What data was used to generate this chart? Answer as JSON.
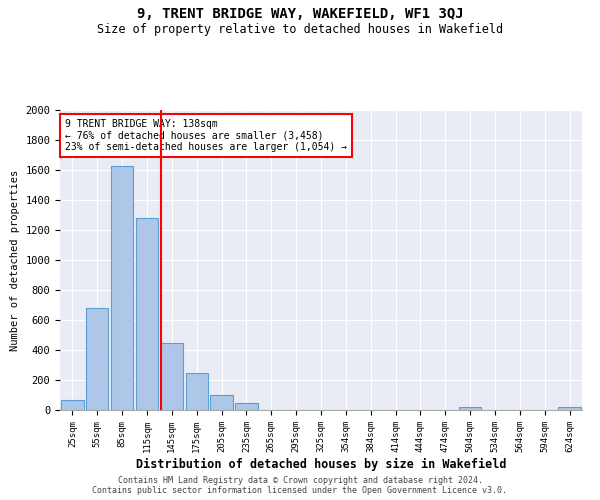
{
  "title": "9, TRENT BRIDGE WAY, WAKEFIELD, WF1 3QJ",
  "subtitle": "Size of property relative to detached houses in Wakefield",
  "xlabel": "Distribution of detached houses by size in Wakefield",
  "ylabel": "Number of detached properties",
  "footer_line1": "Contains HM Land Registry data © Crown copyright and database right 2024.",
  "footer_line2": "Contains public sector information licensed under the Open Government Licence v3.0.",
  "categories": [
    "25sqm",
    "55sqm",
    "85sqm",
    "115sqm",
    "145sqm",
    "175sqm",
    "205sqm",
    "235sqm",
    "265sqm",
    "295sqm",
    "325sqm",
    "354sqm",
    "384sqm",
    "414sqm",
    "444sqm",
    "474sqm",
    "504sqm",
    "534sqm",
    "564sqm",
    "594sqm",
    "624sqm"
  ],
  "values": [
    70,
    680,
    1630,
    1280,
    450,
    250,
    100,
    50,
    0,
    0,
    0,
    0,
    0,
    0,
    0,
    0,
    20,
    0,
    0,
    0,
    20
  ],
  "bar_color": "#aec6e8",
  "bar_edge_color": "#5a9fd4",
  "vline_x": 3.55,
  "vline_color": "red",
  "annotation_line1": "9 TRENT BRIDGE WAY: 138sqm",
  "annotation_line2": "← 76% of detached houses are smaller (3,458)",
  "annotation_line3": "23% of semi-detached houses are larger (1,054) →",
  "ylim": [
    0,
    2000
  ],
  "yticks": [
    0,
    200,
    400,
    600,
    800,
    1000,
    1200,
    1400,
    1600,
    1800,
    2000
  ],
  "bg_color": "#eaecf5",
  "annotation_box_color": "white",
  "annotation_box_edge": "red"
}
